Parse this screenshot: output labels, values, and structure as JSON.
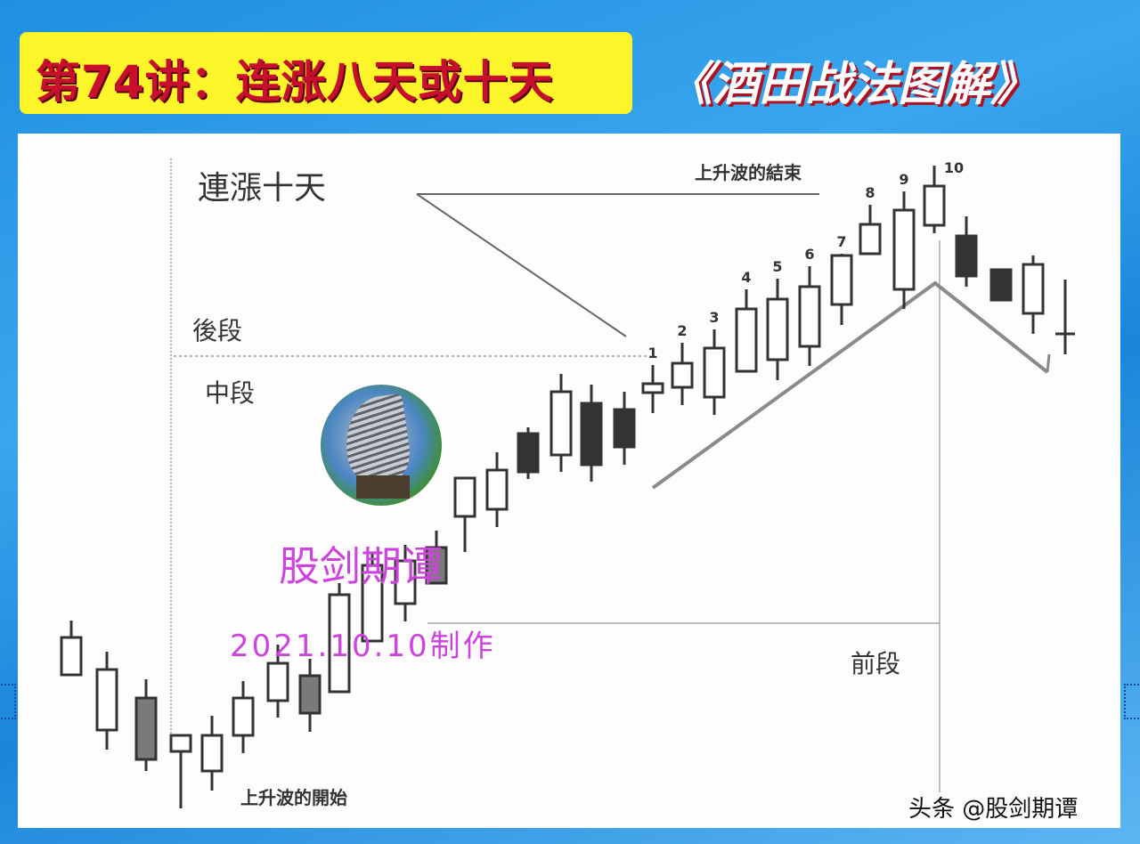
{
  "header": {
    "lesson_title": "第74讲：连涨八天或十天",
    "series_title": "《酒田战法图解》"
  },
  "annotations": {
    "consecutive_rise": "連漲十天",
    "wave_end": "上升波的結束",
    "late_stage": "後段",
    "mid_stage": "中段",
    "early_stage": "前段",
    "wave_start": "上升波的開始"
  },
  "watermark": {
    "name": "股剑期谭",
    "date": "2021.10.10制作"
  },
  "credit": "头条 @股剑期谭",
  "colors": {
    "title_bg": "#fbf52a",
    "title_text": "#c8102e",
    "watermark": "#cc44dd",
    "bearish": "#333333",
    "hatched": "#7a7a7a"
  },
  "chart_data": {
    "type": "candlestick",
    "title": "",
    "xlabel": "",
    "ylabel": "",
    "grid": false,
    "count_labels": [
      "1",
      "2",
      "3",
      "4",
      "5",
      "6",
      "7",
      "8",
      "9",
      "10"
    ],
    "count_label_start_index": 18,
    "candles": [
      {
        "o": 17.2,
        "h": 23.3,
        "l": 17.2,
        "c": 21.4,
        "fill": "white"
      },
      {
        "o": 11.0,
        "h": 19.8,
        "l": 8.8,
        "c": 17.8,
        "fill": "white"
      },
      {
        "o": 14.6,
        "h": 16.7,
        "l": 6.4,
        "c": 7.7,
        "fill": "hatched"
      },
      {
        "o": 8.6,
        "h": 10.4,
        "l": 2.2,
        "c": 10.4,
        "fill": "white"
      },
      {
        "o": 6.4,
        "h": 12.6,
        "l": 4.2,
        "c": 10.4,
        "fill": "white"
      },
      {
        "o": 10.4,
        "h": 16.5,
        "l": 8.4,
        "c": 14.6,
        "fill": "white"
      },
      {
        "o": 14.3,
        "h": 20.6,
        "l": 12.4,
        "c": 18.5,
        "fill": "white"
      },
      {
        "o": 17.1,
        "h": 19.0,
        "l": 10.8,
        "c": 12.9,
        "fill": "hatched"
      },
      {
        "o": 15.3,
        "h": 27.5,
        "l": 15.3,
        "c": 26.2,
        "fill": "white"
      },
      {
        "o": 21.0,
        "h": 31.0,
        "l": 21.0,
        "c": 29.5,
        "fill": "white"
      },
      {
        "o": 25.2,
        "h": 31.8,
        "l": 23.2,
        "c": 30.0,
        "fill": "white"
      },
      {
        "o": 31.5,
        "h": 33.4,
        "l": 27.5,
        "c": 27.5,
        "fill": "hatched"
      },
      {
        "o": 35.0,
        "h": 39.3,
        "l": 31.0,
        "c": 39.3,
        "fill": "white"
      },
      {
        "o": 35.8,
        "h": 42.2,
        "l": 33.8,
        "c": 40.2,
        "fill": "white"
      },
      {
        "o": 44.3,
        "h": 45.0,
        "l": 39.2,
        "c": 40.0,
        "fill": "black"
      },
      {
        "o": 41.9,
        "h": 51.0,
        "l": 40.0,
        "c": 49.0,
        "fill": "white"
      },
      {
        "o": 47.7,
        "h": 49.8,
        "l": 38.9,
        "c": 40.8,
        "fill": "black"
      },
      {
        "o": 47.0,
        "h": 49.0,
        "l": 40.8,
        "c": 42.8,
        "fill": "black"
      },
      {
        "o": 48.9,
        "h": 52.0,
        "l": 46.6,
        "c": 49.9,
        "fill": "white"
      },
      {
        "o": 49.5,
        "h": 54.5,
        "l": 47.5,
        "c": 52.2,
        "fill": "white"
      },
      {
        "o": 48.4,
        "h": 56.0,
        "l": 46.4,
        "c": 53.9,
        "fill": "white"
      },
      {
        "o": 51.3,
        "h": 60.5,
        "l": 51.3,
        "c": 58.3,
        "fill": "white"
      },
      {
        "o": 52.6,
        "h": 61.7,
        "l": 50.3,
        "c": 59.4,
        "fill": "white"
      },
      {
        "o": 54.1,
        "h": 63.1,
        "l": 51.9,
        "c": 60.8,
        "fill": "white"
      },
      {
        "o": 58.8,
        "h": 64.5,
        "l": 56.5,
        "c": 64.3,
        "fill": "white"
      },
      {
        "o": 64.5,
        "h": 70.0,
        "l": 64.5,
        "c": 67.8,
        "fill": "white"
      },
      {
        "o": 60.5,
        "h": 71.5,
        "l": 58.3,
        "c": 69.4,
        "fill": "white"
      },
      {
        "o": 67.7,
        "h": 74.4,
        "l": 66.8,
        "c": 72.1,
        "fill": "white"
      },
      {
        "o": 66.5,
        "h": 68.7,
        "l": 60.8,
        "c": 62.0,
        "fill": "black"
      },
      {
        "o": 62.7,
        "h": 62.7,
        "l": 59.3,
        "c": 59.3,
        "fill": "black"
      },
      {
        "o": 57.8,
        "h": 64.3,
        "l": 55.5,
        "c": 63.3,
        "fill": "white"
      },
      {
        "o": 55.5,
        "h": 61.6,
        "l": 53.2,
        "c": 55.5,
        "fill": "white"
      }
    ]
  }
}
